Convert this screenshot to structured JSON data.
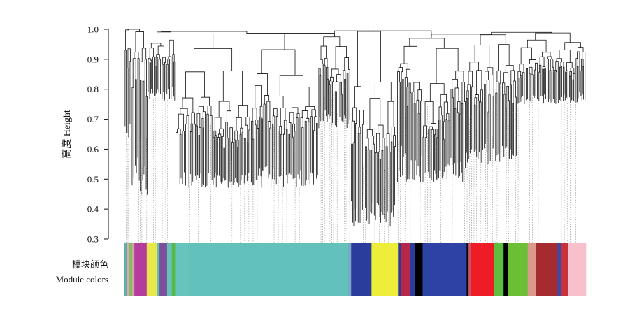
{
  "chart_data": {
    "type": "dendrogram",
    "title": "",
    "ylabel": "高度 Height",
    "ylim": [
      0.3,
      1.0
    ],
    "yticks": [
      "1.0",
      "0.9",
      "0.8",
      "0.7",
      "0.6",
      "0.5",
      "0.4",
      "0.3"
    ],
    "grid": false,
    "legend": "none",
    "module_bar_label_cn": "模块颜色",
    "module_bar_label_en": "Module colors",
    "line_color": "#111111",
    "module_segments": [
      {
        "color": "#5ab2a4",
        "width": 0.005
      },
      {
        "color": "#e7a3b4",
        "width": 0.005
      },
      {
        "color": "#7fbf5a",
        "width": 0.006
      },
      {
        "color": "#c9a4a0",
        "width": 0.005
      },
      {
        "color": "#b53c9c",
        "width": 0.026
      },
      {
        "color": "#e8e84a",
        "width": 0.021
      },
      {
        "color": "#5cc2b8",
        "width": 0.006
      },
      {
        "color": "#7c4f9b",
        "width": 0.016
      },
      {
        "color": "#66c2b8",
        "width": 0.01
      },
      {
        "color": "#5ab848",
        "width": 0.007
      },
      {
        "color": "#66c4bd",
        "width": 0.028
      },
      {
        "color": "#62c1bb",
        "width": 0.338
      },
      {
        "color": "#7aa8c4",
        "width": 0.006
      },
      {
        "color": "#2a3d9c",
        "width": 0.043
      },
      {
        "color": "#eded3a",
        "width": 0.056
      },
      {
        "color": "#2a3d9c",
        "width": 0.006
      },
      {
        "color": "#b7274a",
        "width": 0.02
      },
      {
        "color": "#2a3d9c",
        "width": 0.01
      },
      {
        "color": "#000000",
        "width": 0.016
      },
      {
        "color": "#2d42a4",
        "width": 0.093
      },
      {
        "color": "#000000",
        "width": 0.004
      },
      {
        "color": "#c8506a",
        "width": 0.005
      },
      {
        "color": "#ee1c24",
        "width": 0.048
      },
      {
        "color": "#5ebe3e",
        "width": 0.021
      },
      {
        "color": "#000000",
        "width": 0.01
      },
      {
        "color": "#6cbf34",
        "width": 0.041
      },
      {
        "color": "#d99a8c",
        "width": 0.018
      },
      {
        "color": "#a62b2e",
        "width": 0.045
      },
      {
        "color": "#3b4ba8",
        "width": 0.008
      },
      {
        "color": "#c7313d",
        "width": 0.015
      },
      {
        "color": "#f8c0cc",
        "width": 0.037
      }
    ],
    "branches": [
      {
        "x0": 0.0,
        "x1": 0.015,
        "merge": 0.998,
        "top_min": 0.79,
        "leaf_min": 0.6,
        "density": 9
      },
      {
        "x0": 0.015,
        "x1": 0.05,
        "merge": 0.992,
        "top_min": 0.8,
        "leaf_min": 0.44,
        "density": 10
      },
      {
        "x0": 0.05,
        "x1": 0.11,
        "merge": 0.991,
        "top_min": 0.84,
        "leaf_min": 0.76,
        "density": 16
      },
      {
        "x0": 0.11,
        "x1": 0.42,
        "merge": 0.985,
        "top_min": 0.88,
        "leaf_min": 0.47,
        "density": 34
      },
      {
        "x0": 0.42,
        "x1": 0.49,
        "merge": 0.975,
        "top_min": 0.86,
        "leaf_min": 0.67,
        "density": 18
      },
      {
        "x0": 0.49,
        "x1": 0.59,
        "merge": 0.993,
        "top_min": 0.96,
        "leaf_min": 0.34,
        "density": 20
      },
      {
        "x0": 0.59,
        "x1": 0.74,
        "merge": 0.97,
        "top_min": 0.93,
        "leaf_min": 0.49,
        "density": 28
      },
      {
        "x0": 0.74,
        "x1": 0.85,
        "merge": 0.982,
        "top_min": 0.9,
        "leaf_min": 0.55,
        "density": 22
      },
      {
        "x0": 0.85,
        "x1": 1.0,
        "merge": 0.988,
        "top_min": 0.93,
        "leaf_min": 0.75,
        "density": 24
      }
    ]
  }
}
